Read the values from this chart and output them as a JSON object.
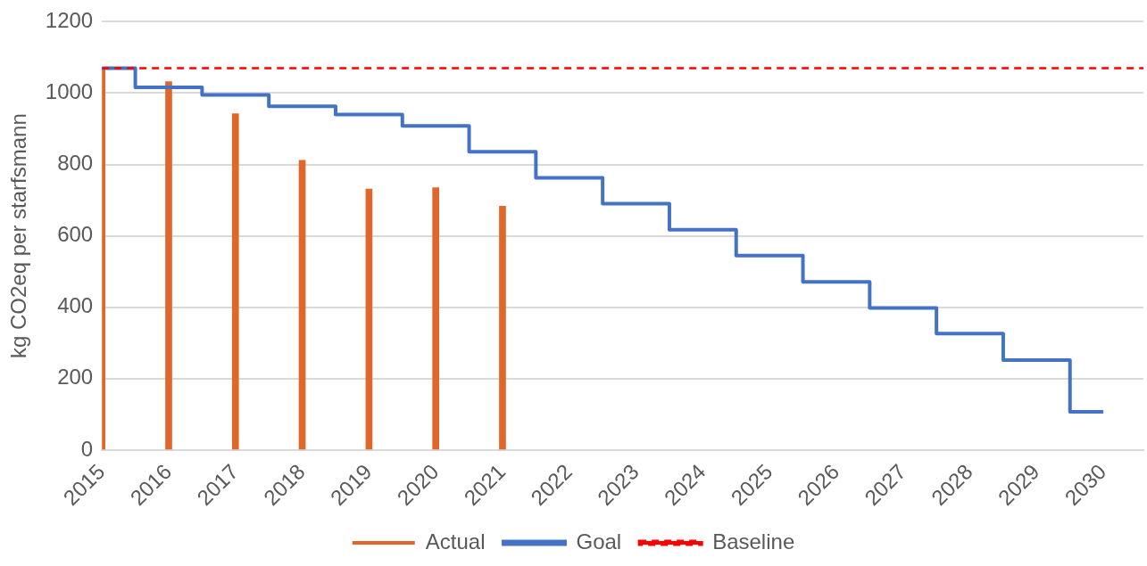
{
  "chart_data": {
    "type": "bar",
    "ylabel": "kg CO2eq per starfsmann",
    "x": [
      2015,
      2016,
      2017,
      2018,
      2019,
      2020,
      2021,
      2022,
      2023,
      2024,
      2025,
      2026,
      2027,
      2028,
      2029,
      2030
    ],
    "xlim": [
      2015,
      2030.6
    ],
    "xticks": [
      2015,
      2016,
      2017,
      2018,
      2019,
      2020,
      2021,
      2022,
      2023,
      2024,
      2025,
      2026,
      2027,
      2028,
      2029,
      2030
    ],
    "ylim": [
      0,
      1200
    ],
    "yticks": [
      0,
      200,
      400,
      600,
      800,
      1000,
      1200
    ],
    "grid": "y",
    "legend": "bottom",
    "series": [
      {
        "name": "Actual",
        "color": "#e0662a",
        "x": [
          2015,
          2016,
          2017,
          2018,
          2019,
          2020,
          2021
        ],
        "values": [
          1070,
          1032,
          942,
          812,
          731,
          735,
          683
        ]
      },
      {
        "name": "Goal",
        "type": "step",
        "color": "#4472c4",
        "values": [
          1070,
          1016,
          995,
          963,
          940,
          908,
          836,
          763,
          690,
          617,
          545,
          471,
          398,
          326,
          252,
          107
        ]
      }
    ],
    "ref_lines": [
      {
        "axis": "y",
        "value": 1070,
        "label": "Baseline",
        "color": "#ff0000",
        "line_style": "dashed"
      }
    ]
  }
}
